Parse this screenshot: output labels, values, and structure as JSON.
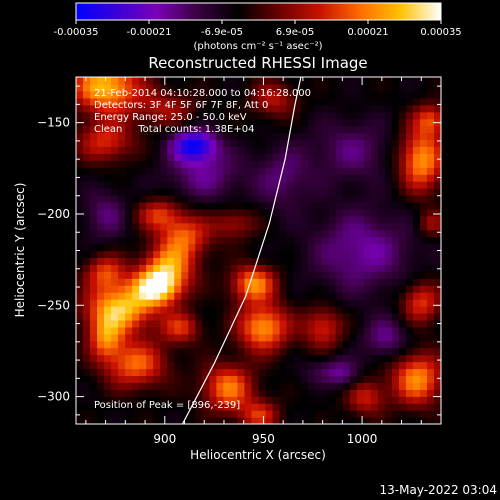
{
  "chart_data": {
    "type": "heatmap",
    "title": "Reconstructed RHESSI Image",
    "xlabel": "Heliocentric X (arcsec)",
    "ylabel": "Heliocentric Y (arcsec)",
    "xlim": [
      855,
      1040
    ],
    "ylim": [
      -315,
      -125
    ],
    "xticks": [
      900,
      950,
      1000
    ],
    "yticks": [
      -150,
      -200,
      -250,
      -300
    ],
    "colorbar": {
      "min": -0.00035,
      "max": 0.00035,
      "colors": [
        "#0000ff",
        "#3a00d8",
        "#7a00b8",
        "#3a0040",
        "#000000",
        "#6a0000",
        "#c81000",
        "#ff6a00",
        "#ffc200",
        "#ffffff"
      ],
      "tick_labels": [
        "-0.00035",
        "-0.00021",
        "-6.9e-05",
        "6.9e-05",
        "0.00021",
        "0.00035"
      ],
      "unit_label": "(photons cm⁻² s⁻¹ asec⁻²)"
    },
    "annotations": [
      "21-Feb-2014 04:10:28.000 to 04:16:28.000",
      "Detectors: 3F 4F 5F 6F 7F 8F, Att 0",
      "Energy Range: 25.0 - 50.0 keV",
      "Clean     Total counts: 1.38E+04"
    ],
    "peak_label": "Position of Peak = [896,-239]",
    "peak_position": [
      896,
      -239
    ],
    "limb_curve": [
      [
        909,
        -315
      ],
      [
        925,
        -282
      ],
      [
        941,
        -245
      ],
      [
        953,
        -205
      ],
      [
        961,
        -170
      ],
      [
        966,
        -140
      ],
      [
        969,
        -125
      ]
    ],
    "blobs": [
      {
        "x": 870,
        "y": -130,
        "sx": 12,
        "sy": 10,
        "a": 0.9
      },
      {
        "x": 870,
        "y": -160,
        "sx": 10,
        "sy": 8,
        "a": 0.5
      },
      {
        "x": 900,
        "y": -142,
        "sx": 11,
        "sy": 7,
        "a": 0.35
      },
      {
        "x": 955,
        "y": -137,
        "sx": 8,
        "sy": 7,
        "a": 0.4
      },
      {
        "x": 897,
        "y": -200,
        "sx": 8,
        "sy": 6,
        "a": 0.5
      },
      {
        "x": 910,
        "y": -212,
        "sx": 9,
        "sy": 8,
        "a": 0.6
      },
      {
        "x": 902,
        "y": -228,
        "sx": 9,
        "sy": 8,
        "a": 0.7
      },
      {
        "x": 896,
        "y": -240,
        "sx": 9,
        "sy": 7,
        "a": 1.0
      },
      {
        "x": 877,
        "y": -252,
        "sx": 12,
        "sy": 9,
        "a": 0.9
      },
      {
        "x": 870,
        "y": -232,
        "sx": 7,
        "sy": 7,
        "a": 0.55
      },
      {
        "x": 885,
        "y": -282,
        "sx": 11,
        "sy": 9,
        "a": 0.65
      },
      {
        "x": 870,
        "y": -268,
        "sx": 6,
        "sy": 8,
        "a": 0.6
      },
      {
        "x": 908,
        "y": -262,
        "sx": 7,
        "sy": 6,
        "a": 0.5
      },
      {
        "x": 945,
        "y": -238,
        "sx": 8,
        "sy": 7,
        "a": 0.75
      },
      {
        "x": 950,
        "y": -262,
        "sx": 9,
        "sy": 9,
        "a": 0.8
      },
      {
        "x": 932,
        "y": -295,
        "sx": 9,
        "sy": 9,
        "a": 0.7
      },
      {
        "x": 948,
        "y": -310,
        "sx": 7,
        "sy": 6,
        "a": 0.5
      },
      {
        "x": 935,
        "y": -205,
        "sx": 8,
        "sy": 6,
        "a": 0.35
      },
      {
        "x": 980,
        "y": -262,
        "sx": 7,
        "sy": 8,
        "a": 0.5
      },
      {
        "x": 983,
        "y": -290,
        "sx": 6,
        "sy": 6,
        "a": 0.4
      },
      {
        "x": 1030,
        "y": -170,
        "sx": 8,
        "sy": 12,
        "a": 0.8
      },
      {
        "x": 1035,
        "y": -148,
        "sx": 6,
        "sy": 6,
        "a": 0.5
      },
      {
        "x": 1030,
        "y": -248,
        "sx": 7,
        "sy": 8,
        "a": 0.55
      },
      {
        "x": 1028,
        "y": -290,
        "sx": 9,
        "sy": 10,
        "a": 0.75
      },
      {
        "x": 1002,
        "y": -300,
        "sx": 7,
        "sy": 7,
        "a": 0.45
      },
      {
        "x": 1035,
        "y": -205,
        "sx": 5,
        "sy": 5,
        "a": 0.35
      },
      {
        "x": 915,
        "y": -162,
        "sx": 8,
        "sy": 6,
        "a": -0.8
      },
      {
        "x": 985,
        "y": -288,
        "sx": 8,
        "sy": 6,
        "a": -0.7
      },
      {
        "x": 920,
        "y": -178,
        "sx": 14,
        "sy": 10,
        "a": -0.35
      },
      {
        "x": 1000,
        "y": -220,
        "sx": 18,
        "sy": 16,
        "a": -0.4
      },
      {
        "x": 995,
        "y": -165,
        "sx": 15,
        "sy": 12,
        "a": -0.3
      },
      {
        "x": 870,
        "y": -200,
        "sx": 8,
        "sy": 10,
        "a": -0.3
      },
      {
        "x": 960,
        "y": -180,
        "sx": 10,
        "sy": 12,
        "a": -0.3
      },
      {
        "x": 1012,
        "y": -268,
        "sx": 8,
        "sy": 8,
        "a": -0.35
      }
    ]
  },
  "date_stamp": "13-May-2022 03:04"
}
